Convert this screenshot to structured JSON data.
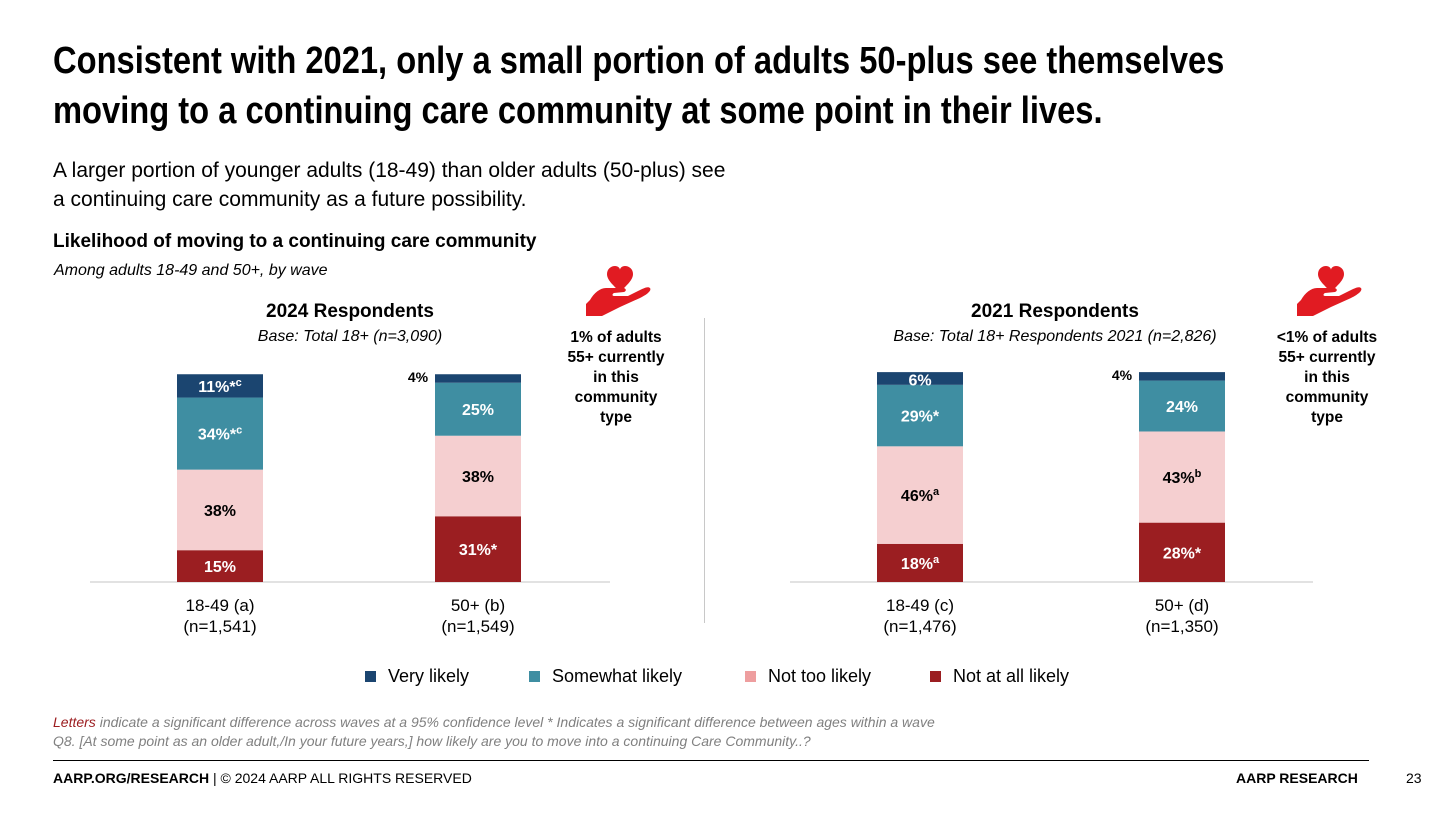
{
  "title": {
    "line1": "Consistent with 2021, only a small portion of adults 50-plus see themselves",
    "line2": "moving to a continuing care community at some point in their lives."
  },
  "subtitle": {
    "line1": "A larger portion of younger adults (18-49) than older adults (50-plus) see",
    "line2": "a continuing care community as a future possibility."
  },
  "chart_heading": "Likelihood of moving to a continuing care community",
  "chart_subheading": "Among adults 18-49 and 50+, by wave",
  "colors": {
    "very_likely": "#1b4570",
    "somewhat_likely": "#3f8ea2",
    "not_too_likely": "#f5cfd0",
    "not_at_all_likely": "#9b1e21",
    "legend_not_too_likely": "#ee9e9f",
    "icon_red": "#e11b22"
  },
  "icons": [
    "heart-hand-icon",
    "heart-hand-icon"
  ],
  "chart_data": [
    {
      "type": "bar",
      "stacked": true,
      "title": "2024 Respondents",
      "subtitle": "Base: Total 18+ (n=3,090)",
      "categories": [
        {
          "line1": "18-49 (a)",
          "line2": "(n=1,541)"
        },
        {
          "line1": "50+ (b)",
          "line2": "(n=1,549)"
        }
      ],
      "series": [
        {
          "name": "Not at all likely",
          "values": [
            15,
            31
          ],
          "labels": [
            "15%",
            "31%*"
          ]
        },
        {
          "name": "Not too likely",
          "values": [
            38,
            38
          ],
          "labels": [
            "38%",
            "38%"
          ]
        },
        {
          "name": "Somewhat likely",
          "values": [
            34,
            25
          ],
          "labels": [
            "34%*c",
            "25%"
          ]
        },
        {
          "name": "Very likely",
          "values": [
            11,
            4
          ],
          "labels": [
            "11%*c",
            "4%"
          ]
        }
      ],
      "callout": [
        "1% of adults",
        "55+ currently",
        "in this",
        "community",
        "type"
      ]
    },
    {
      "type": "bar",
      "stacked": true,
      "title": "2021 Respondents",
      "subtitle": "Base: Total 18+ Respondents 2021 (n=2,826)",
      "categories": [
        {
          "line1": "18-49 (c)",
          "line2": "(n=1,476)"
        },
        {
          "line1": "50+ (d)",
          "line2": "(n=1,350)"
        }
      ],
      "series": [
        {
          "name": "Not at all likely",
          "values": [
            18,
            28
          ],
          "labels": [
            "18%a",
            "28%*"
          ]
        },
        {
          "name": "Not too likely",
          "values": [
            46,
            43
          ],
          "labels": [
            "46%a",
            "43%b"
          ]
        },
        {
          "name": "Somewhat likely",
          "values": [
            29,
            24
          ],
          "labels": [
            "29%*",
            "24%"
          ]
        },
        {
          "name": "Very likely",
          "values": [
            6,
            4
          ],
          "labels": [
            "6%",
            "4%"
          ]
        }
      ],
      "callout": [
        "<1% of adults",
        "55+ currently",
        "in this",
        "community",
        "type"
      ]
    }
  ],
  "legend": [
    "Very likely",
    "Somewhat likely",
    "Not too likely",
    "Not at all likely"
  ],
  "footnote": {
    "letters": "Letters",
    "line1_rest": " indicate a significant difference across waves at a 95% confidence level   * Indicates a significant difference between ages within a wave",
    "line2": "Q8. [At some point as an older adult,/In your future years,] how likely are you to move into a continuing Care Community..?"
  },
  "footer": {
    "left_bold": "AARP.ORG/RESEARCH",
    "left_rest": " | © 2024 AARP ALL RIGHTS RESERVED",
    "right": "AARP RESEARCH",
    "page_number": "23"
  }
}
